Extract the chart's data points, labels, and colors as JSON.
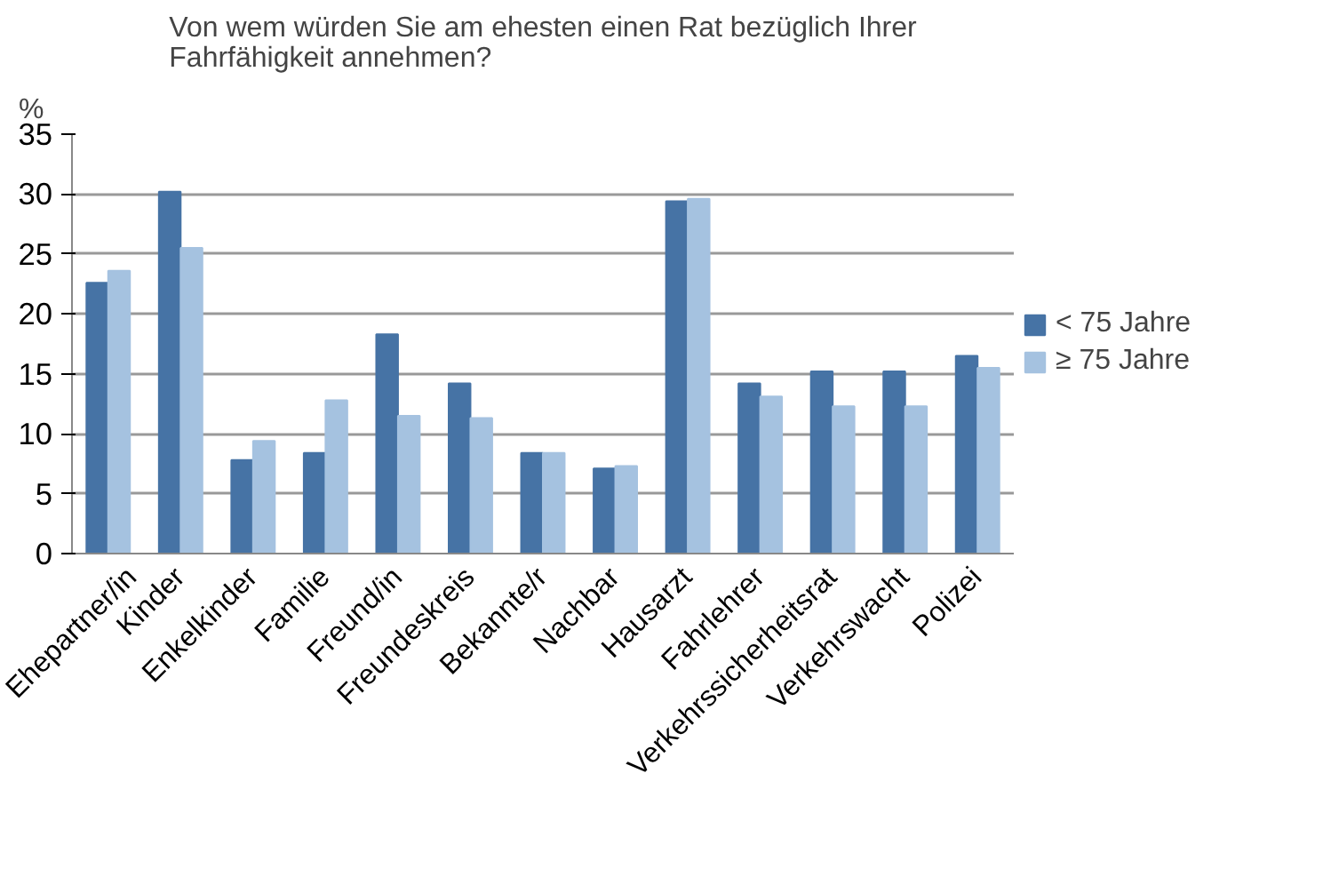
{
  "chart_data": {
    "type": "bar",
    "title": "Von wem würden Sie am ehesten einen Rat bezüglich Ihrer Fahrfähigkeit annehmen?",
    "ylabel": "%",
    "categories": [
      "Ehepartner/in",
      "Kinder",
      "Enkelkinder",
      "Familie",
      "Freund/in",
      "Freundeskreis",
      "Bekannte/r",
      "Nachbar",
      "Hausarzt",
      "Fahrlehrer",
      "Verkehrssicherheitsrat",
      "Verkehrswacht",
      "Polizei"
    ],
    "series": [
      {
        "name": "< 75 Jahre",
        "color": "#4673a5",
        "values": [
          22.6,
          30.2,
          7.8,
          8.4,
          18.3,
          14.2,
          8.4,
          7.1,
          29.4,
          14.2,
          15.2,
          15.2,
          16.5
        ]
      },
      {
        "name": "≥ 75 Jahre",
        "color": "#a5c2e0",
        "values": [
          23.6,
          25.5,
          9.4,
          12.8,
          11.5,
          11.3,
          8.4,
          7.3,
          29.6,
          13.1,
          12.3,
          12.3,
          15.5
        ]
      }
    ],
    "ylim": [
      0,
      35
    ],
    "yticks": [
      0,
      5,
      10,
      15,
      20,
      25,
      30,
      35
    ],
    "grid": "y",
    "legend": "right"
  }
}
